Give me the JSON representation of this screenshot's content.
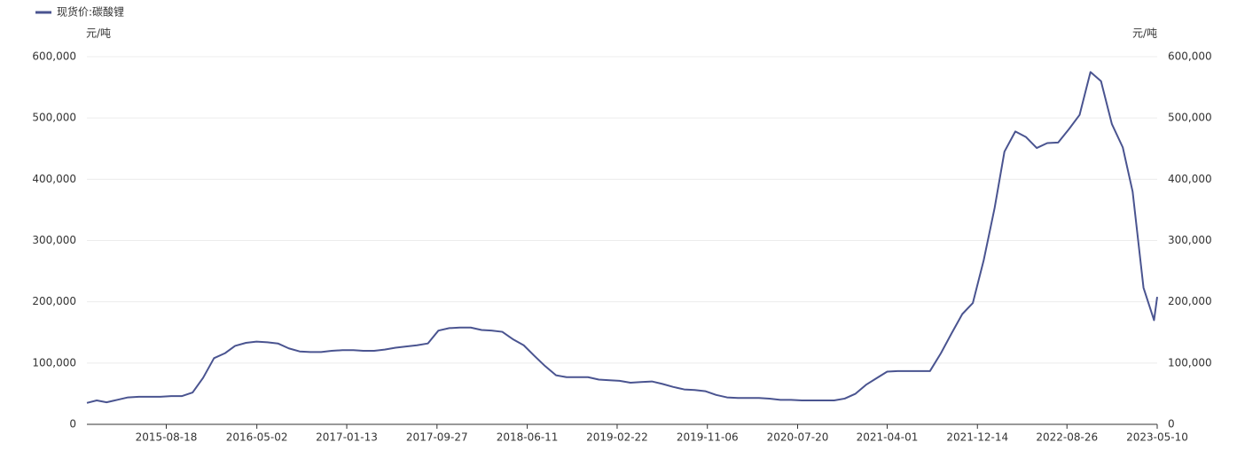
{
  "chart_data": {
    "type": "line",
    "legend": "top-left",
    "y_label": "元/吨",
    "y2_label": "元/吨",
    "grid": true,
    "x": [
      "2015-01-04",
      "2015-02-01",
      "2015-03-01",
      "2015-04-01",
      "2015-05-01",
      "2015-06-01",
      "2015-07-01",
      "2015-08-01",
      "2015-09-01",
      "2015-10-01",
      "2015-11-01",
      "2015-12-01",
      "2016-01-01",
      "2016-02-01",
      "2016-03-01",
      "2016-04-01",
      "2016-05-01",
      "2016-06-01",
      "2016-07-01",
      "2016-08-01",
      "2016-09-01",
      "2016-10-01",
      "2016-11-01",
      "2016-12-01",
      "2017-01-01",
      "2017-02-01",
      "2017-03-01",
      "2017-04-01",
      "2017-05-01",
      "2017-06-01",
      "2017-07-01",
      "2017-08-01",
      "2017-09-01",
      "2017-10-01",
      "2017-11-01",
      "2017-12-01",
      "2018-01-01",
      "2018-02-01",
      "2018-03-01",
      "2018-04-01",
      "2018-05-01",
      "2018-06-01",
      "2018-07-01",
      "2018-08-01",
      "2018-09-01",
      "2018-10-01",
      "2018-11-01",
      "2018-12-01",
      "2019-01-01",
      "2019-02-01",
      "2019-03-01",
      "2019-04-01",
      "2019-05-01",
      "2019-06-01",
      "2019-07-01",
      "2019-08-01",
      "2019-09-01",
      "2019-10-01",
      "2019-11-01",
      "2019-12-01",
      "2020-01-01",
      "2020-02-01",
      "2020-03-01",
      "2020-04-01",
      "2020-05-01",
      "2020-06-01",
      "2020-07-01",
      "2020-08-01",
      "2020-09-01",
      "2020-10-01",
      "2020-11-01",
      "2020-12-01",
      "2021-01-01",
      "2021-02-01",
      "2021-03-01",
      "2021-04-01",
      "2021-05-01",
      "2021-06-01",
      "2021-07-01",
      "2021-08-01",
      "2021-09-01",
      "2021-10-01",
      "2021-11-01",
      "2021-12-01",
      "2022-01-01",
      "2022-02-01",
      "2022-03-01",
      "2022-04-01",
      "2022-05-01",
      "2022-06-01",
      "2022-07-01",
      "2022-08-01",
      "2022-09-01",
      "2022-10-01",
      "2022-11-01",
      "2022-12-01",
      "2023-01-01",
      "2023-02-01",
      "2023-03-01",
      "2023-04-01",
      "2023-05-01",
      "2023-05-10"
    ],
    "series": [
      {
        "name": "现货价:碳酸锂",
        "color": "#4a5490",
        "values": [
          35000,
          39000,
          36000,
          40000,
          44000,
          45000,
          45000,
          45000,
          46000,
          46000,
          52000,
          76000,
          108000,
          116000,
          128000,
          133000,
          135000,
          134000,
          132000,
          124000,
          119000,
          118000,
          118000,
          120000,
          121000,
          121000,
          120000,
          120000,
          122000,
          125000,
          127000,
          129000,
          132000,
          153000,
          157000,
          158000,
          158000,
          154000,
          153000,
          151000,
          139000,
          129000,
          112000,
          95000,
          80000,
          77000,
          77000,
          77000,
          73000,
          72000,
          71000,
          68000,
          69000,
          70000,
          66000,
          61000,
          57000,
          56000,
          54000,
          48000,
          44000,
          43000,
          43000,
          43000,
          42000,
          40000,
          40000,
          39000,
          39000,
          39000,
          39000,
          42000,
          50000,
          65000,
          75000,
          86000,
          87000,
          87000,
          87000,
          87000,
          116000,
          148000,
          180000,
          198000,
          268000,
          353000,
          445000,
          478000,
          469000,
          451000,
          459000,
          460000,
          482000,
          505000,
          575000,
          560000,
          490000,
          452000,
          380000,
          223000,
          170000,
          208000
        ]
      }
    ],
    "xlim": [
      "2015-01-04",
      "2023-05-10"
    ],
    "xticks": [
      "2015-08-18",
      "2016-05-02",
      "2017-01-13",
      "2017-09-27",
      "2018-06-11",
      "2019-02-22",
      "2019-11-06",
      "2020-07-20",
      "2021-04-01",
      "2021-12-14",
      "2022-08-26",
      "2023-05-10"
    ],
    "ylim": [
      0,
      600000
    ],
    "yticks": [
      0,
      {
        "value": 100000,
        "label": "100,000"
      },
      {
        "value": 200000,
        "label": "200,000"
      },
      {
        "value": 300000,
        "label": "300,000"
      },
      {
        "value": 400000,
        "label": "400,000"
      },
      {
        "value": 500000,
        "label": "500,000"
      },
      {
        "value": 600000,
        "label": "600,000"
      }
    ],
    "y2lim": [
      0,
      600000
    ],
    "y2ticks": [
      0,
      {
        "value": 100000,
        "label": "100,000"
      },
      {
        "value": 200000,
        "label": "200,000"
      },
      {
        "value": 300000,
        "label": "300,000"
      },
      {
        "value": 400000,
        "label": "400,000"
      },
      {
        "value": 500000,
        "label": "500,000"
      },
      {
        "value": 600000,
        "label": "600,000"
      }
    ]
  }
}
